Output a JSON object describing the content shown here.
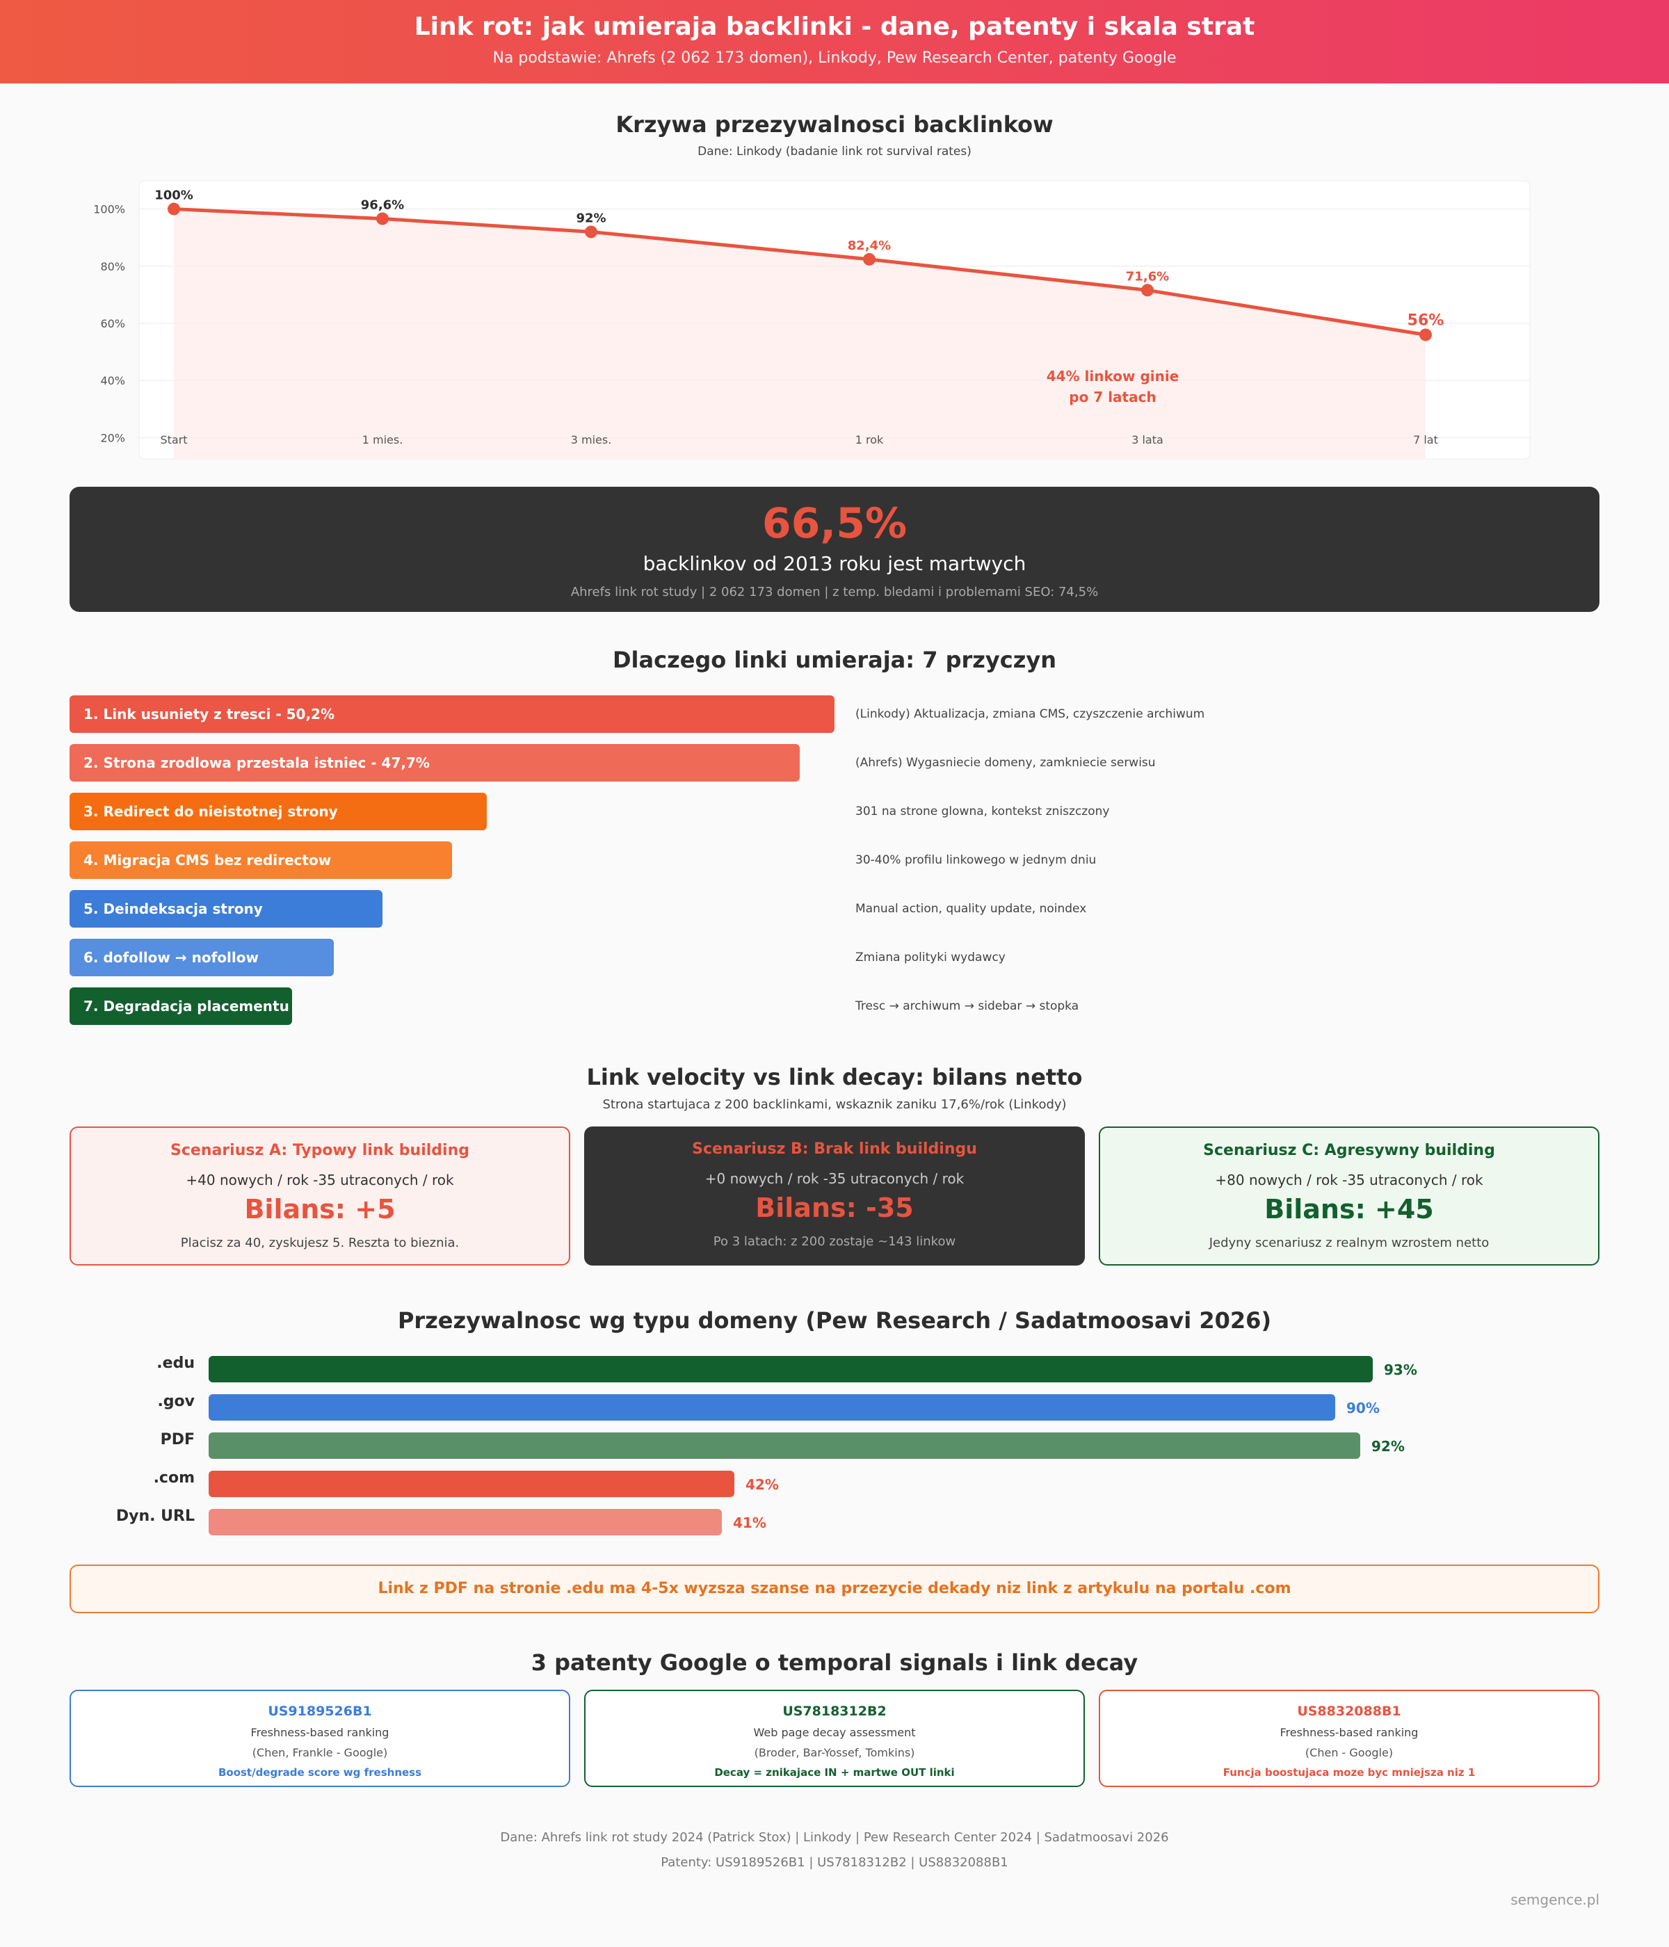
{
  "header": {
    "title": "Link rot: jak umieraja backlinki - dane, patenty i skala strat",
    "subtitle": "Na podstawie: Ahrefs (2 062 173 domen), Linkody, Pew Research Center, patenty Google"
  },
  "survival": {
    "title": "Krzywa przezywalnosci backlinkow",
    "source": "Dane: Linkody (badanie link rot survival rates)"
  },
  "chart_data": [
    {
      "type": "line",
      "categories": [
        "Start",
        "1 mies.",
        "3 mies.",
        "1 rok",
        "3 lata",
        "7 lat"
      ],
      "values": [
        100,
        96.6,
        92,
        82.4,
        71.6,
        56
      ],
      "value_labels": [
        "100%",
        "96,6%",
        "92%",
        "82,4%",
        "71,6%",
        "56%"
      ],
      "yticks": [
        "100%",
        "80%",
        "60%",
        "40%",
        "20%"
      ],
      "ytick_values": [
        100,
        80,
        60,
        40,
        20
      ],
      "ylim": [
        15,
        105
      ],
      "annotation": [
        "44% linkow ginie",
        "po 7 latach"
      ],
      "color": "#e8543f"
    },
    {
      "type": "bar",
      "categories": [
        ".edu",
        ".gov",
        "PDF",
        ".com",
        "Dyn. URL"
      ],
      "values": [
        93,
        90,
        92,
        42,
        41
      ],
      "value_labels": [
        "93%",
        "90%",
        "92%",
        "42%",
        "41%"
      ],
      "colors": [
        "#13602f",
        "#3c7dd9",
        "#5a9068",
        "#e8543f",
        "#f08a7e"
      ],
      "label_colors": [
        "#13602f",
        "#3c7dd9",
        "#13602f",
        "#e8543f",
        "#e8543f"
      ]
    }
  ],
  "stat": {
    "value": "66,5%",
    "label": "backlinkov od 2013 roku jest martwych",
    "source": "Ahrefs link rot study | 2 062 173 domen | z temp. bledami i problemami SEO: 74,5%"
  },
  "causes": {
    "title": "Dlaczego linki umieraja: 7 przyczyn",
    "items": [
      {
        "label": "1. Link usuniety z tresci - 50,2%",
        "note": "(Linkody) Aktualizacja, zmiana CMS, czyszczenie archiwum",
        "color": "#ec5644"
      },
      {
        "label": "2. Strona zrodlowa przestala istniec - 47,7%",
        "note": "(Ahrefs) Wygasniecie domeny, zamkniecie serwisu",
        "color": "#ef6a57"
      },
      {
        "label": "3. Redirect do nieistotnej strony",
        "note": "301 na strone glowna, kontekst zniszczony",
        "color": "#f56d12"
      },
      {
        "label": "4. Migracja CMS bez redirectow",
        "note": "30-40% profilu linkowego w jednym dniu",
        "color": "#f7812f"
      },
      {
        "label": "5. Deindeksacja strony",
        "note": "Manual action, quality update, noindex",
        "color": "#3c7dd9"
      },
      {
        "label": "6. dofollow → nofollow",
        "note": "Zmiana polityki wydawcy",
        "color": "#568ee0"
      },
      {
        "label": "7. Degradacja placementu",
        "note": "Tresc → archiwum → sidebar → stopka",
        "color": "#13602f"
      }
    ]
  },
  "velocity": {
    "title": "Link velocity vs link decay: bilans netto",
    "subtitle": "Strona startujaca z 200 backlinkami, wskaznik zaniku 17,6%/rok (Linkody)",
    "scenarios": [
      {
        "title": "Scenariusz A: Typowy link building",
        "formula": "+40 nowych / rok -35 utraconych / rok",
        "balance": "Bilans: +5",
        "note": "Placisz za 40, zyskujesz 5. Reszta to bieznia."
      },
      {
        "title": "Scenariusz B: Brak link buildingu",
        "formula": "+0 nowych / rok -35 utraconych / rok",
        "balance": "Bilans: -35",
        "note": "Po 3 latach: z 200 zostaje ~143 linkow"
      },
      {
        "title": "Scenariusz C: Agresywny building",
        "formula": "+80 nowych / rok -35 utraconych / rok",
        "balance": "Bilans: +45",
        "note": "Jedyny scenariusz z realnym wzrostem netto"
      }
    ]
  },
  "domains": {
    "title": "Przezywalnosc wg typu domeny (Pew Research / Sadatmoosavi 2026)"
  },
  "note": "Link z PDF na stronie .edu ma 4-5x wyzsza szanse na przezycie dekady niz link z artykulu na portalu .com",
  "patents": {
    "title": "3 patenty Google o temporal signals i link decay",
    "items": [
      {
        "id": "US9189526B1",
        "desc": "Freshness-based ranking",
        "authors": "(Chen, Frankle - Google)",
        "key": "Boost/degrade score wg freshness"
      },
      {
        "id": "US7818312B2",
        "desc": "Web page decay assessment",
        "authors": "(Broder, Bar-Yossef, Tomkins)",
        "key": "Decay = znikajace IN + martwe OUT linki"
      },
      {
        "id": "US8832088B1",
        "desc": "Freshness-based ranking",
        "authors": "(Chen - Google)",
        "key": "Funcja boostujaca moze byc mniejsza niz 1"
      }
    ]
  },
  "footer": {
    "line1": "Dane: Ahrefs link rot study 2024 (Patrick Stox) | Linkody | Pew Research Center 2024 | Sadatmoosavi 2026",
    "line2": "Patenty: US9189526B1 | US7818312B2 | US8832088B1",
    "brand": "semgence.pl"
  }
}
